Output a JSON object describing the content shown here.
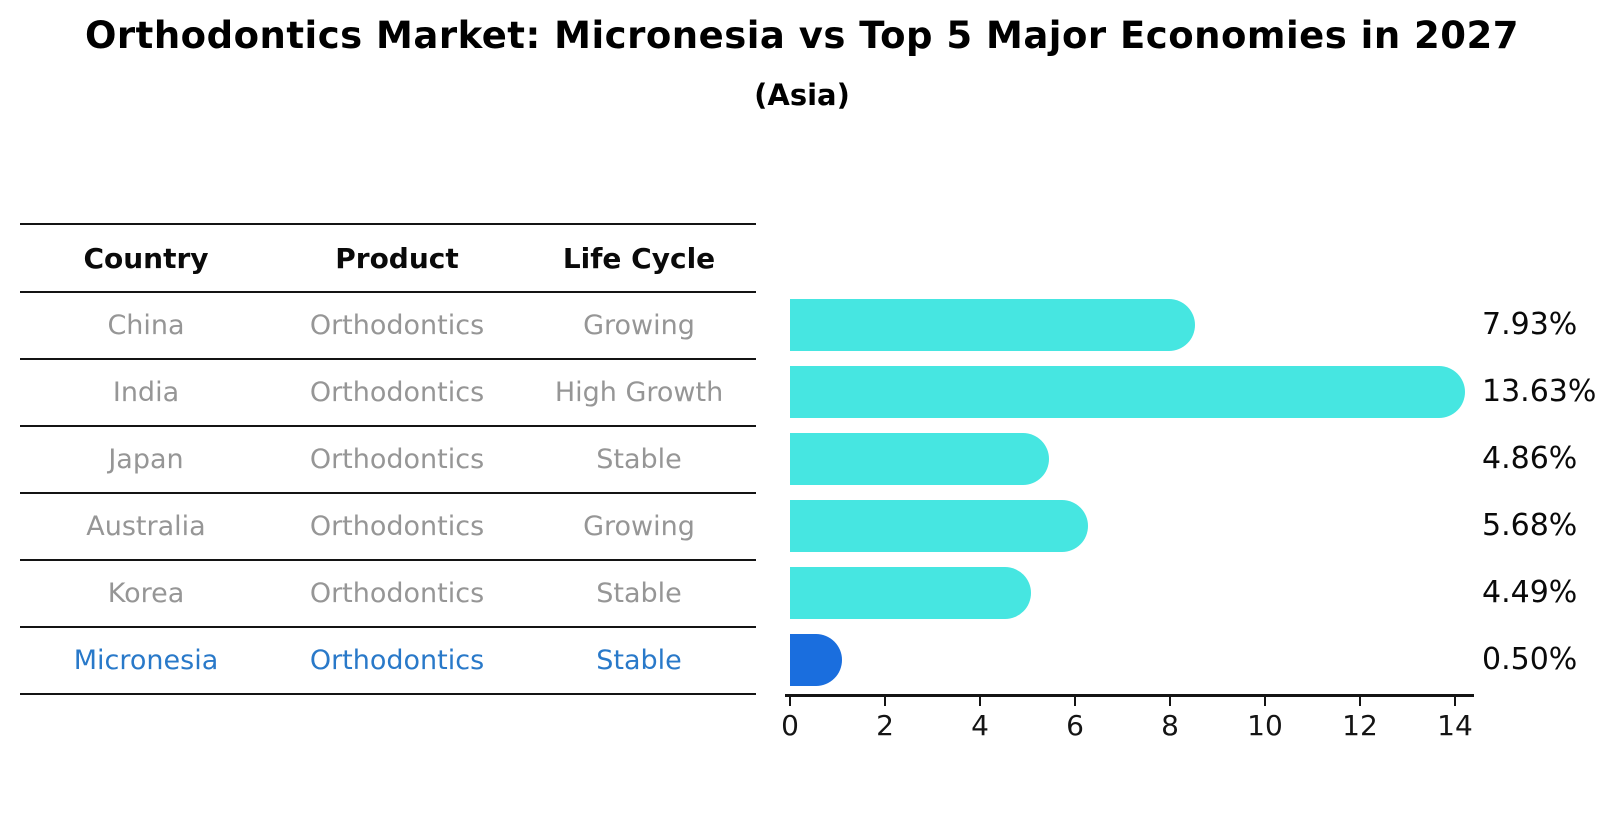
{
  "title": "Orthodontics Market: Micronesia vs Top 5 Major Economies in 2027",
  "subtitle": "(Asia)",
  "table": {
    "headers": [
      "Country",
      "Product",
      "Life Cycle"
    ],
    "rows": [
      {
        "country": "China",
        "product": "Orthodontics",
        "life_cycle": "Growing",
        "highlight": false
      },
      {
        "country": "India",
        "product": "Orthodontics",
        "life_cycle": "High Growth",
        "highlight": false
      },
      {
        "country": "Japan",
        "product": "Orthodontics",
        "life_cycle": "Stable",
        "highlight": false
      },
      {
        "country": "Australia",
        "product": "Orthodontics",
        "life_cycle": "Growing",
        "highlight": false
      },
      {
        "country": "Korea",
        "product": "Orthodontics",
        "life_cycle": "Stable",
        "highlight": false
      },
      {
        "country": "Micronesia",
        "product": "Orthodontics",
        "life_cycle": "Stable",
        "highlight": true
      }
    ]
  },
  "chart_data": {
    "type": "bar",
    "orientation": "horizontal",
    "title": "Orthodontics Market: Micronesia vs Top 5 Major Economies in 2027",
    "subtitle": "(Asia)",
    "categories": [
      "China",
      "India",
      "Japan",
      "Australia",
      "Korea",
      "Micronesia"
    ],
    "values": [
      7.93,
      13.63,
      4.86,
      5.68,
      4.49,
      0.5
    ],
    "value_labels": [
      "7.93%",
      "13.63%",
      "4.86%",
      "5.68%",
      "4.49%",
      "0.50%"
    ],
    "xlabel": "",
    "ylabel": "",
    "xlim": [
      0,
      14
    ],
    "x_ticks": [
      0,
      2,
      4,
      6,
      8,
      10,
      12,
      14
    ],
    "grid": false,
    "legend": false,
    "default_bar_color": "#46E6E1",
    "highlight_bar_color": "#1A6EDE",
    "highlight_category": "Micronesia"
  },
  "colors": {
    "bar_cyan": "#46E6E1",
    "bar_blue": "#1A6EDE",
    "highlight_text_blue": "#2979C9",
    "body_text_gray": "#969696",
    "line_black": "#141414"
  }
}
